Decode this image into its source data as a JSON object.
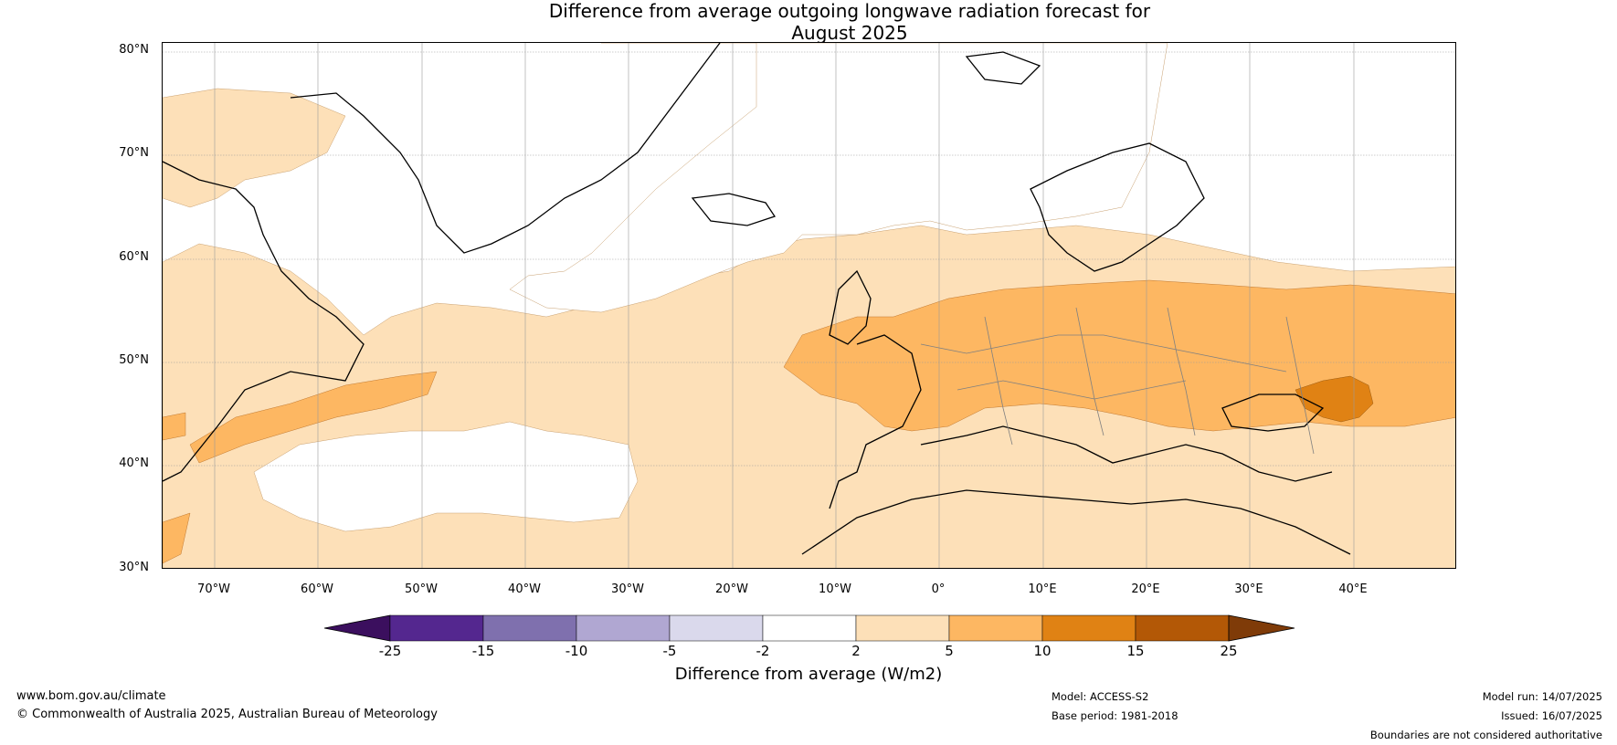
{
  "title": {
    "line1": "Difference from average outgoing longwave radiation forecast for",
    "line2": "August 2025"
  },
  "map": {
    "latitudes": [
      "80°N",
      "70°N",
      "60°N",
      "50°N",
      "40°N",
      "30°N"
    ],
    "longitudes": [
      "70°W",
      "60°W",
      "50°W",
      "40°W",
      "30°W",
      "20°W",
      "10°W",
      "0°",
      "10°E",
      "20°E",
      "30°E",
      "40°E"
    ]
  },
  "colorbar": {
    "ticks": [
      "-25",
      "-15",
      "-10",
      "-5",
      "-2",
      "2",
      "5",
      "10",
      "15",
      "25"
    ],
    "colors": [
      "#3b0f5e",
      "#54278f",
      "#7f70ae",
      "#b0a7d2",
      "#dad9ec",
      "#ffffff",
      "#fde0b8",
      "#fdb762",
      "#e08214",
      "#b35806",
      "#7f3b08"
    ],
    "label": "Difference from average (W/m2)"
  },
  "footer": {
    "website": "www.bom.gov.au/climate",
    "copyright": "© Commonwealth of Australia 2025, Australian Bureau of Meteorology",
    "model": "Model: ACCESS-S2",
    "base_period": "Base period: 1981-2018",
    "model_run": "Model run: 14/07/2025",
    "issued": "Issued: 16/07/2025",
    "disclaimer": "Boundaries are not considered authoritative"
  }
}
